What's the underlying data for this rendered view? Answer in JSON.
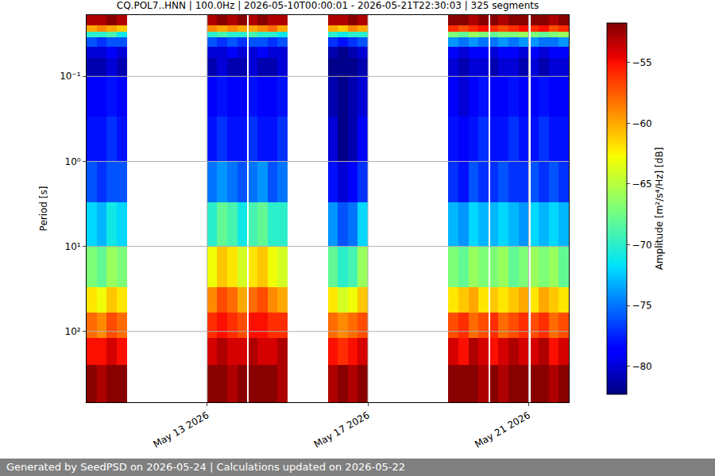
{
  "chart_data": {
    "type": "heatmap",
    "title": "CQ.POL7..HNN | 100.0Hz | 2026-05-10T00:00:01 - 2026-05-21T22:30:03 | 325 segments",
    "y_label": "Period [s]",
    "colorbar_label": "Amplitude [m²/s⁴/Hz] [dB]",
    "footer": "Generated by SeedPSD on 2026-05-24 | Calculations updated on 2026-05-22",
    "log": "y",
    "grid": true,
    "color": "jet",
    "xlim": [
      "2026-05-10 00:00",
      "2026-05-22 00:00"
    ],
    "xticks": [
      {
        "value": "2026-05-13",
        "label": "May 13 2026"
      },
      {
        "value": "2026-05-17",
        "label": "May 17 2026"
      },
      {
        "value": "2026-05-21",
        "label": "May 21 2026"
      }
    ],
    "ylim": [
      680,
      0.019
    ],
    "yticks": [
      {
        "value": 0.1,
        "label": "10⁻¹"
      },
      {
        "value": 1,
        "label": "10⁰"
      },
      {
        "value": 10,
        "label": "10¹"
      },
      {
        "value": 100,
        "label": "10²"
      }
    ],
    "zlim": [
      -82.3,
      -51.75
    ],
    "zticks": [
      {
        "value": -80,
        "label": "−80"
      },
      {
        "value": -75,
        "label": "−75"
      },
      {
        "value": -70,
        "label": "−70"
      },
      {
        "value": -65,
        "label": "−65"
      },
      {
        "value": -60,
        "label": "−60"
      },
      {
        "value": -55,
        "label": "−55"
      }
    ],
    "x": [
      "2026-05-10 00:00",
      "2026-05-10 06:00",
      "2026-05-10 12:00",
      "2026-05-10 18:00",
      "2026-05-11 00:00",
      "2026-05-13 00:00",
      "2026-05-13 06:00",
      "2026-05-13 12:00",
      "2026-05-13 18:00",
      "2026-05-14 00:00",
      "2026-05-14 01:00",
      "2026-05-14 06:00",
      "2026-05-14 12:00",
      "2026-05-14 18:00",
      "2026-05-15 00:00",
      "2026-05-16 00:00",
      "2026-05-16 06:00",
      "2026-05-16 12:00",
      "2026-05-16 18:00",
      "2026-05-17 00:00",
      "2026-05-19 00:00",
      "2026-05-19 06:00",
      "2026-05-19 12:00",
      "2026-05-19 18:00",
      "2026-05-20 00:00",
      "2026-05-20 01:00",
      "2026-05-20 06:00",
      "2026-05-20 12:00",
      "2026-05-20 18:00",
      "2026-05-21 00:00",
      "2026-05-21 01:00",
      "2026-05-21 06:00",
      "2026-05-21 12:00",
      "2026-05-21 18:00",
      "2026-05-22 00:00"
    ],
    "y": [
      0.019,
      0.025,
      0.03,
      0.035,
      0.045,
      0.06,
      0.1,
      0.3,
      1,
      3,
      10,
      30,
      60,
      120,
      250,
      680
    ],
    "z": [
      [
        -53,
        -53,
        -52,
        -53,
        null,
        -53,
        -52,
        -53,
        -52,
        null,
        -53,
        -52,
        -53,
        -53,
        null,
        -53,
        -53,
        -52,
        -53,
        null,
        -52,
        -52,
        -53,
        -52,
        null,
        -52,
        -53,
        -52,
        -52,
        null,
        -52,
        -52,
        -53,
        -52
      ],
      [
        -60,
        -59,
        -60,
        -61,
        null,
        -59,
        -60,
        -59,
        -60,
        null,
        -60,
        -59,
        -58,
        -60,
        null,
        -60,
        -61,
        -59,
        -60,
        null,
        -56,
        -57,
        -56,
        -55,
        null,
        -56,
        -57,
        -56,
        -55,
        null,
        -56,
        -55,
        -57,
        -56
      ],
      [
        -70,
        -70,
        -69,
        -71,
        null,
        -70,
        -69,
        -70,
        -70,
        null,
        -69,
        -70,
        -70,
        -71,
        null,
        -70,
        -71,
        -70,
        -70,
        null,
        -67,
        -68,
        -66,
        -67,
        null,
        -68,
        -67,
        -67,
        -66,
        null,
        -67,
        -68,
        -67,
        -66
      ],
      [
        -76,
        -77,
        -76,
        -76,
        null,
        -76,
        -77,
        -76,
        -77,
        null,
        -76,
        -76,
        -77,
        -76,
        null,
        -77,
        -78,
        -77,
        -76,
        null,
        -74,
        -75,
        -74,
        -75,
        null,
        -75,
        -74,
        -75,
        -74,
        null,
        -74,
        -75,
        -75,
        -74
      ],
      [
        -80,
        -80,
        -79,
        -80,
        null,
        -80,
        -80,
        -79,
        -80,
        null,
        -80,
        -79,
        -80,
        -80,
        null,
        -81,
        -82,
        -81,
        -80,
        null,
        -79,
        -80,
        -79,
        -79,
        null,
        -80,
        -79,
        -79,
        -80,
        null,
        -79,
        -80,
        -79,
        -79
      ],
      [
        -81,
        -81,
        -80,
        -81,
        null,
        -81,
        -80,
        -81,
        -81,
        null,
        -80,
        -81,
        -81,
        -80,
        null,
        -82,
        -82,
        -82,
        -81,
        null,
        -80,
        -81,
        -80,
        -80,
        null,
        -81,
        -80,
        -80,
        -81,
        null,
        -80,
        -81,
        -80,
        -80
      ],
      [
        -79,
        -79,
        -78,
        -79,
        null,
        -79,
        -78,
        -79,
        -79,
        null,
        -78,
        -79,
        -79,
        -78,
        null,
        -81,
        -82,
        -81,
        -80,
        null,
        -79,
        -80,
        -79,
        -78,
        null,
        -79,
        -79,
        -78,
        -79,
        null,
        -79,
        -78,
        -79,
        -79
      ],
      [
        -78,
        -78,
        -77,
        -78,
        null,
        -78,
        -77,
        -78,
        -78,
        null,
        -77,
        -78,
        -78,
        -77,
        null,
        -80,
        -82,
        -81,
        -79,
        null,
        -78,
        -79,
        -78,
        -77,
        null,
        -78,
        -78,
        -77,
        -78,
        null,
        -78,
        -77,
        -78,
        -78
      ],
      [
        -76,
        -77,
        -76,
        -76,
        null,
        -75,
        -74,
        -75,
        -76,
        null,
        -75,
        -74,
        -76,
        -75,
        null,
        -78,
        -80,
        -79,
        -77,
        null,
        -77,
        -78,
        -76,
        -77,
        null,
        -77,
        -76,
        -77,
        -77,
        null,
        -76,
        -77,
        -76,
        -77
      ],
      [
        -72,
        -73,
        -71,
        -72,
        null,
        -70,
        -68,
        -69,
        -71,
        null,
        -69,
        -68,
        -70,
        -70,
        null,
        -74,
        -76,
        -75,
        -72,
        null,
        -73,
        -74,
        -72,
        -73,
        null,
        -73,
        -72,
        -73,
        -74,
        null,
        -72,
        -73,
        -72,
        -73
      ],
      [
        -67,
        -68,
        -66,
        -67,
        null,
        -63,
        -61,
        -62,
        -64,
        null,
        -62,
        -61,
        -63,
        -64,
        null,
        -68,
        -70,
        -69,
        -66,
        null,
        -67,
        -68,
        -66,
        -67,
        null,
        -67,
        -66,
        -68,
        -67,
        null,
        -66,
        -67,
        -66,
        -68
      ],
      [
        -62,
        -63,
        -61,
        -62,
        null,
        -59,
        -57,
        -58,
        -60,
        null,
        -58,
        -57,
        -59,
        -60,
        null,
        -62,
        -64,
        -63,
        -61,
        null,
        -62,
        -61,
        -60,
        -62,
        null,
        -61,
        -62,
        -61,
        -60,
        null,
        -62,
        -60,
        -61,
        -62
      ],
      [
        -58,
        -59,
        -57,
        -58,
        null,
        -56,
        -55,
        -56,
        -57,
        null,
        -55,
        -55,
        -56,
        -56,
        null,
        -58,
        -59,
        -58,
        -57,
        null,
        -57,
        -56,
        -58,
        -57,
        null,
        -56,
        -58,
        -57,
        -56,
        null,
        -57,
        -56,
        -58,
        -57
      ],
      [
        -55,
        -55,
        -54,
        -55,
        null,
        -54,
        -53,
        -54,
        -54,
        null,
        -53,
        -54,
        -54,
        -53,
        null,
        -55,
        -56,
        -55,
        -54,
        null,
        -54,
        -55,
        -53,
        -54,
        null,
        -55,
        -54,
        -53,
        -54,
        null,
        -54,
        -53,
        -55,
        -54
      ],
      [
        -52,
        -53,
        -52,
        -52,
        null,
        -52,
        -52,
        -53,
        -52,
        null,
        -52,
        -52,
        -52,
        -53,
        null,
        -53,
        -52,
        -53,
        -52,
        null,
        -52,
        -52,
        -52,
        -53,
        null,
        -52,
        -53,
        -52,
        -52,
        null,
        -52,
        -52,
        -53,
        -52
      ]
    ]
  }
}
